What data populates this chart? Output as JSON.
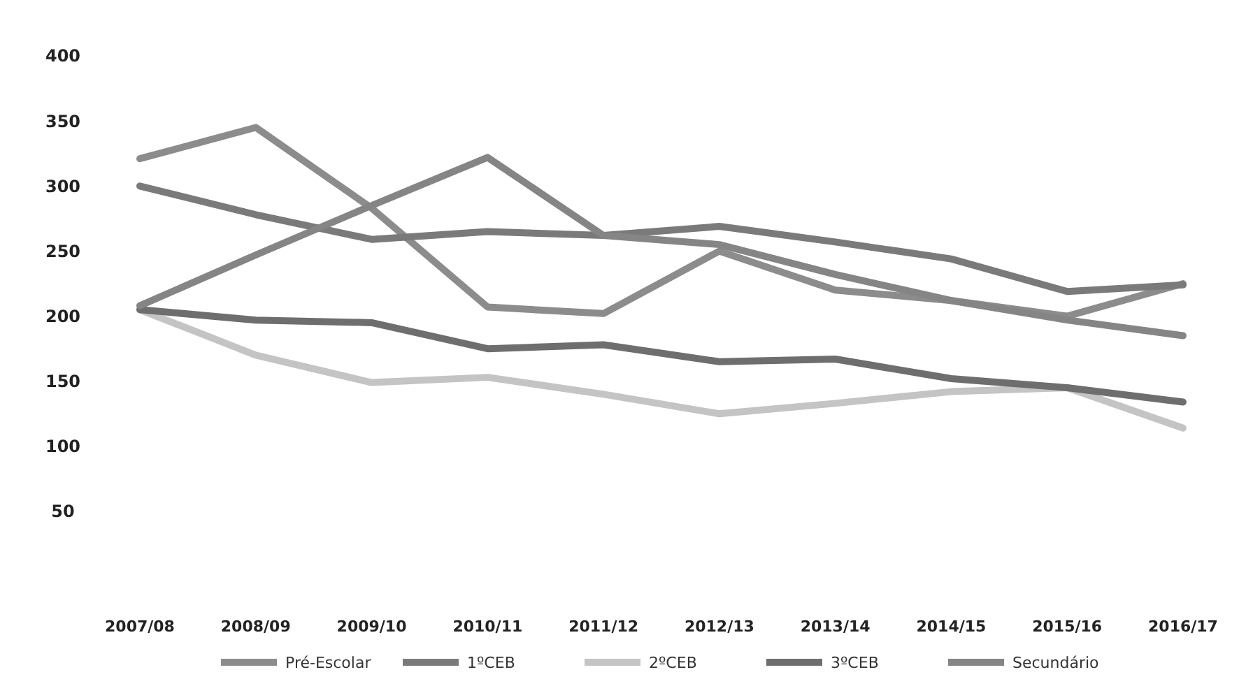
{
  "chart_data": {
    "type": "line",
    "categories": [
      "2007/08",
      "2008/09",
      "2009/10",
      "2010/11",
      "2011/12",
      "2012/13",
      "2013/14",
      "2014/15",
      "2015/16",
      "2016/17"
    ],
    "series": [
      {
        "name": "Pré-Escolar",
        "color": "#8c8c8c",
        "values": [
          321,
          345,
          283,
          207,
          202,
          250,
          220,
          212,
          200,
          225
        ]
      },
      {
        "name": "1ºCEB",
        "color": "#7a7a7a",
        "values": [
          300,
          278,
          259,
          265,
          262,
          269,
          257,
          244,
          219,
          224
        ]
      },
      {
        "name": "2ºCEB",
        "color": "#c4c4c4",
        "values": [
          205,
          170,
          149,
          153,
          140,
          125,
          133,
          142,
          145,
          114
        ]
      },
      {
        "name": "3ºCEB",
        "color": "#6e6e6e",
        "values": [
          205,
          197,
          195,
          175,
          178,
          165,
          167,
          152,
          145,
          134
        ]
      },
      {
        "name": "Secundário",
        "color": "#858585",
        "values": [
          208,
          247,
          285,
          322,
          262,
          255,
          232,
          212,
          197,
          185
        ]
      }
    ],
    "ylim": [
      50,
      400
    ],
    "yticks": [
      50,
      100,
      150,
      200,
      250,
      300,
      350,
      400
    ],
    "grid": false,
    "legend": "bottom",
    "marker": "none",
    "line_style": "solid"
  }
}
